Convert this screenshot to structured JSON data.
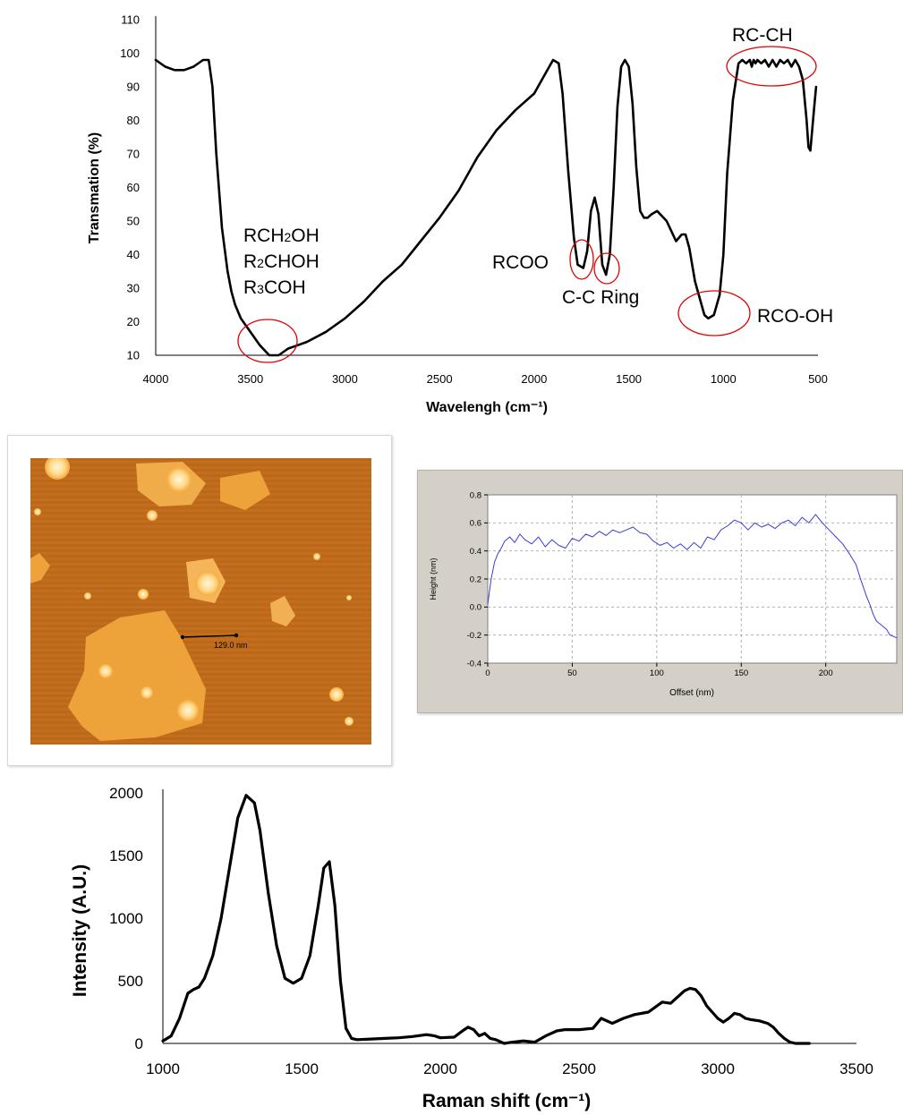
{
  "colors": {
    "ftir_line": "#000000",
    "annotation_ellipse": "#e00000",
    "profile_line": "#3b3bd6",
    "profile_bg": "#d4d0c8",
    "afm_substrate": "#c9731a",
    "afm_flake": "#f5a93c",
    "afm_bright": "#ffe9b8",
    "raman_line": "#000000"
  },
  "chart_data": [
    {
      "type": "line",
      "ylabel": "Transmation (%)",
      "xlabel": "Wavelengh (cm⁻¹)",
      "xlim": [
        4000,
        500
      ],
      "ylim": [
        10,
        110
      ],
      "x_ticks": [
        "4000",
        "3500",
        "3000",
        "2500",
        "2000",
        "1500",
        "1000",
        "500"
      ],
      "y_ticks": [
        "10",
        "20",
        "30",
        "40",
        "50",
        "60",
        "70",
        "80",
        "90",
        "100",
        "110"
      ],
      "grid": false,
      "series": [
        {
          "x": [
            4000,
            3950,
            3900,
            3850,
            3800,
            3750,
            3720,
            3700,
            3680,
            3650,
            3620,
            3600,
            3580,
            3550,
            3500,
            3450,
            3400,
            3350,
            3300,
            3250,
            3200,
            3100,
            3000,
            2900,
            2800,
            2700,
            2600,
            2500,
            2400,
            2300,
            2200,
            2100,
            2000,
            1950,
            1900,
            1870,
            1850,
            1820,
            1790,
            1770,
            1740,
            1720,
            1700,
            1680,
            1660,
            1640,
            1620,
            1600,
            1580,
            1560,
            1540,
            1520,
            1500,
            1480,
            1460,
            1440,
            1420,
            1400,
            1380,
            1350,
            1300,
            1250,
            1220,
            1200,
            1180,
            1150,
            1120,
            1100,
            1080,
            1050,
            1020,
            1000,
            980,
            950,
            920,
            900,
            880,
            860,
            850,
            840,
            830,
            820,
            800,
            780,
            760,
            740,
            720,
            700,
            680,
            660,
            640,
            620,
            600,
            580,
            560,
            550,
            540,
            520,
            510
          ],
          "y": [
            98,
            96,
            95,
            95,
            96,
            98,
            98,
            90,
            70,
            48,
            35,
            29,
            25,
            21,
            17,
            13,
            10,
            10,
            12,
            13,
            14,
            17,
            21,
            26,
            32,
            37,
            44,
            51,
            59,
            69,
            77,
            83,
            88,
            93,
            98,
            97,
            88,
            65,
            45,
            37,
            36,
            41,
            53,
            57,
            52,
            37,
            34,
            40,
            60,
            84,
            96,
            98,
            96,
            85,
            66,
            53,
            51,
            51,
            52,
            53,
            50,
            44,
            46,
            46,
            42,
            32,
            26,
            22,
            21,
            22,
            28,
            40,
            64,
            86,
            97,
            98,
            97,
            98,
            96,
            98,
            97,
            98,
            97,
            98,
            96,
            98,
            96,
            98,
            97,
            98,
            96,
            98,
            96,
            92,
            80,
            72,
            71,
            84,
            90
          ]
        }
      ],
      "annotations": [
        {
          "lines": [
            "RCH",
            "2",
            "OH",
            "R",
            "2",
            "CHOH",
            "R",
            "3",
            "COH"
          ],
          "target_x": 3400,
          "target_y": 14
        },
        {
          "text": "RCOO",
          "target_x": 1740,
          "target_y": 38
        },
        {
          "text": "C-C Ring",
          "target_x": 1615,
          "target_y": 36
        },
        {
          "text": "RC-CH",
          "target_x": 720,
          "target_y": 97
        },
        {
          "text": "RCO-OH",
          "target_x": 1050,
          "target_y": 22
        }
      ]
    },
    {
      "type": "line",
      "ylabel": "Height (nm)",
      "xlabel": "Offset (nm)",
      "xlim": [
        0,
        242
      ],
      "ylim": [
        -0.4,
        0.8
      ],
      "x_ticks": [
        "0",
        "50",
        "100",
        "150",
        "200"
      ],
      "y_ticks": [
        "-0.4",
        "-0.2",
        "0.0",
        "0.2",
        "0.4",
        "0.6",
        "0.8"
      ],
      "grid": true,
      "series": [
        {
          "x": [
            0,
            2,
            4,
            6,
            8,
            10,
            13,
            16,
            19,
            22,
            26,
            30,
            34,
            38,
            42,
            46,
            50,
            54,
            58,
            62,
            66,
            70,
            74,
            78,
            82,
            86,
            90,
            94,
            98,
            102,
            106,
            110,
            114,
            118,
            122,
            126,
            130,
            134,
            138,
            142,
            146,
            150,
            154,
            158,
            162,
            166,
            170,
            174,
            178,
            182,
            186,
            190,
            194,
            198,
            202,
            206,
            210,
            214,
            218,
            220,
            222,
            224,
            226,
            228,
            230,
            232,
            234,
            236,
            238,
            240,
            242
          ],
          "y": [
            0.02,
            0.2,
            0.32,
            0.38,
            0.42,
            0.47,
            0.5,
            0.46,
            0.52,
            0.48,
            0.45,
            0.5,
            0.43,
            0.48,
            0.44,
            0.42,
            0.49,
            0.47,
            0.52,
            0.5,
            0.54,
            0.51,
            0.55,
            0.53,
            0.55,
            0.57,
            0.53,
            0.52,
            0.47,
            0.44,
            0.46,
            0.42,
            0.45,
            0.41,
            0.46,
            0.42,
            0.5,
            0.48,
            0.55,
            0.58,
            0.62,
            0.6,
            0.55,
            0.6,
            0.57,
            0.59,
            0.56,
            0.6,
            0.62,
            0.58,
            0.64,
            0.6,
            0.66,
            0.6,
            0.55,
            0.5,
            0.45,
            0.38,
            0.3,
            0.22,
            0.15,
            0.08,
            0.02,
            -0.05,
            -0.1,
            -0.12,
            -0.14,
            -0.16,
            -0.2,
            -0.21,
            -0.22
          ]
        }
      ]
    },
    {
      "type": "line",
      "ylabel": "Intensity (A.U.)",
      "xlabel": "Raman shift (cm⁻¹)",
      "xlim": [
        1000,
        3500
      ],
      "ylim": [
        0,
        2000
      ],
      "x_ticks": [
        "1000",
        "1500",
        "2000",
        "2500",
        "3000",
        "3500"
      ],
      "y_ticks": [
        "0",
        "500",
        "1000",
        "1500",
        "2000"
      ],
      "grid": false,
      "series": [
        {
          "x": [
            1000,
            1030,
            1060,
            1090,
            1110,
            1130,
            1150,
            1180,
            1210,
            1240,
            1270,
            1300,
            1330,
            1350,
            1380,
            1410,
            1440,
            1470,
            1500,
            1530,
            1560,
            1580,
            1600,
            1620,
            1640,
            1660,
            1680,
            1700,
            1750,
            1800,
            1850,
            1900,
            1950,
            1980,
            2000,
            2050,
            2080,
            2100,
            2120,
            2140,
            2160,
            2180,
            2200,
            2230,
            2260,
            2300,
            2340,
            2380,
            2420,
            2450,
            2500,
            2550,
            2580,
            2620,
            2660,
            2700,
            2750,
            2800,
            2830,
            2860,
            2880,
            2900,
            2920,
            2940,
            2960,
            2980,
            3000,
            3020,
            3040,
            3060,
            3080,
            3100,
            3120,
            3150,
            3180,
            3200,
            3220,
            3240,
            3260,
            3280,
            3300,
            3330
          ],
          "y": [
            20,
            60,
            200,
            400,
            430,
            450,
            520,
            700,
            1000,
            1400,
            1800,
            1980,
            1920,
            1700,
            1200,
            780,
            520,
            480,
            520,
            700,
            1100,
            1400,
            1450,
            1100,
            500,
            120,
            40,
            30,
            35,
            40,
            45,
            55,
            70,
            60,
            45,
            50,
            100,
            130,
            110,
            60,
            80,
            40,
            30,
            0,
            10,
            20,
            10,
            60,
            100,
            110,
            110,
            120,
            200,
            160,
            200,
            230,
            250,
            330,
            320,
            380,
            420,
            440,
            430,
            380,
            300,
            250,
            200,
            170,
            200,
            240,
            230,
            200,
            190,
            180,
            160,
            130,
            80,
            40,
            10,
            0,
            0,
            0
          ]
        }
      ]
    }
  ],
  "afm": {
    "scale_label": "129.0 nm"
  }
}
